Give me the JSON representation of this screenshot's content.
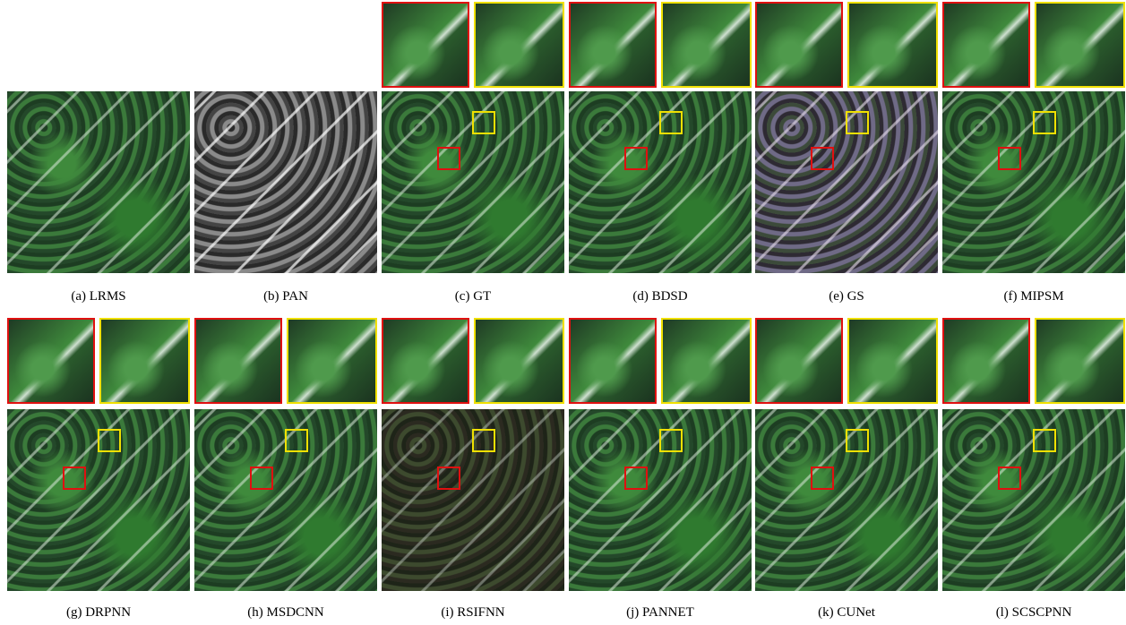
{
  "figure": {
    "panels": [
      {
        "caption": "(a) LRMS",
        "zoom": false
      },
      {
        "caption": "(b) PAN",
        "zoom": false
      },
      {
        "caption": "(c) GT",
        "zoom": true
      },
      {
        "caption": "(d) BDSD",
        "zoom": true
      },
      {
        "caption": "(e) GS",
        "zoom": true
      },
      {
        "caption": "(f) MIPSM",
        "zoom": true
      },
      {
        "caption": "(g) DRPNN",
        "zoom": true
      },
      {
        "caption": "(h) MSDCNN",
        "zoom": true
      },
      {
        "caption": "(i) RSIFNN",
        "zoom": true
      },
      {
        "caption": "(j) PANNET",
        "zoom": true
      },
      {
        "caption": "(k) CUNet",
        "zoom": true
      },
      {
        "caption": "(l) SCSCPNN",
        "zoom": true
      }
    ]
  }
}
